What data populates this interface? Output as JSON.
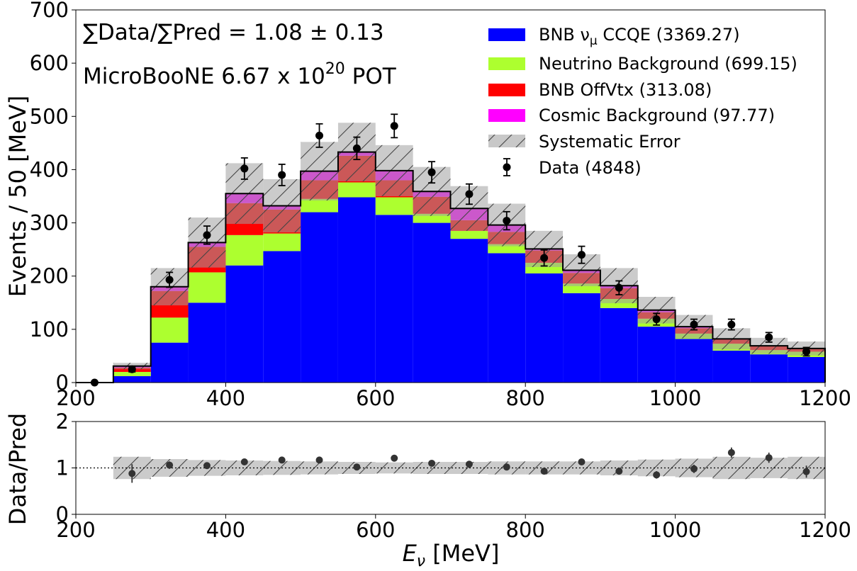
{
  "chart_data": [
    {
      "type": "bar",
      "subtype": "stacked-histogram-with-data-points",
      "bin_edges": [
        200,
        250,
        300,
        350,
        400,
        450,
        500,
        550,
        600,
        650,
        700,
        750,
        800,
        850,
        900,
        950,
        1000,
        1050,
        1100,
        1150,
        1200
      ],
      "series": [
        {
          "name": "BNB νμ CCQE",
          "legend_main": "BNB ν",
          "legend_sub": "μ",
          "legend_rest": " CCQE",
          "yield": "(3369.27)",
          "color": "#0000ff",
          "values": [
            0,
            12,
            75,
            150,
            220,
            247,
            320,
            348,
            315,
            300,
            270,
            243,
            205,
            168,
            140,
            105,
            82,
            60,
            53,
            48
          ]
        },
        {
          "name": "Neutrino Background",
          "legend_main": "Neutrino Background",
          "yield": "(699.15)",
          "color": "#adff2f",
          "values": [
            0,
            8,
            47,
            57,
            57,
            33,
            25,
            28,
            33,
            17,
            15,
            17,
            20,
            18,
            17,
            15,
            10,
            13,
            8,
            10
          ]
        },
        {
          "name": "BNB OffVtx",
          "legend_main": "BNB OffVtx",
          "yield": "(313.08)",
          "color": "#ff0000",
          "values": [
            0,
            8,
            50,
            48,
            60,
            45,
            35,
            50,
            32,
            32,
            20,
            23,
            23,
            20,
            20,
            12,
            10,
            8,
            7,
            5
          ]
        },
        {
          "name": "Cosmic Background",
          "legend_main": "Cosmic Background",
          "yield": "(97.77)",
          "color": "#ff00ff",
          "values": [
            0,
            3,
            8,
            8,
            18,
            7,
            17,
            7,
            18,
            10,
            22,
            13,
            3,
            5,
            5,
            4,
            3,
            1,
            1,
            1
          ]
        }
      ],
      "systematic_error": {
        "label": "Systematic Error",
        "values": [
          0,
          6,
          35,
          47,
          57,
          50,
          55,
          55,
          48,
          46,
          42,
          40,
          34,
          30,
          33,
          25,
          22,
          20,
          15,
          13
        ]
      },
      "data_points": {
        "label": "Data",
        "yield": "(4848)",
        "x": [
          225,
          275,
          325,
          375,
          425,
          475,
          525,
          575,
          625,
          675,
          725,
          775,
          825,
          875,
          925,
          975,
          1025,
          1075,
          1125,
          1175
        ],
        "y": [
          0,
          25,
          193,
          277,
          402,
          390,
          464,
          440,
          482,
          395,
          354,
          304,
          234,
          240,
          178,
          119,
          109,
          109,
          85,
          58
        ],
        "err": [
          0,
          5,
          14,
          17,
          20,
          20,
          22,
          21,
          22,
          20,
          19,
          17,
          15,
          16,
          13,
          11,
          10,
          10,
          9,
          8
        ]
      },
      "annotations": {
        "ratio_text": "∑Data/∑Pred = 1.08 ± 0.13",
        "pot_prefix": "MicroBooNE 6.67 x 10",
        "pot_exp": "20",
        "pot_suffix": " POT"
      },
      "xlabel": "",
      "ylabel": "Events  / 50 [MeV]",
      "xlim": [
        200,
        1200
      ],
      "ylim": [
        0,
        700
      ],
      "xticks": [
        200,
        400,
        600,
        800,
        1000,
        1200
      ],
      "yticks": [
        0,
        100,
        200,
        300,
        400,
        500,
        600,
        700
      ],
      "legend_position": "top-right"
    },
    {
      "type": "scatter",
      "subtype": "ratio-panel",
      "x": [
        275,
        325,
        375,
        425,
        475,
        525,
        575,
        625,
        675,
        725,
        775,
        825,
        875,
        925,
        975,
        1025,
        1075,
        1125,
        1175
      ],
      "ratio": [
        0.88,
        1.06,
        1.05,
        1.13,
        1.17,
        1.17,
        1.02,
        1.21,
        1.1,
        1.08,
        1.02,
        0.93,
        1.13,
        0.93,
        0.85,
        0.98,
        1.33,
        1.22,
        0.92
      ],
      "ratio_err": [
        0.2,
        0.08,
        0.06,
        0.05,
        0.05,
        0.05,
        0.05,
        0.05,
        0.05,
        0.05,
        0.06,
        0.06,
        0.07,
        0.07,
        0.08,
        0.09,
        0.11,
        0.11,
        0.13
      ],
      "band_halfwidth": [
        0.24,
        0.19,
        0.17,
        0.16,
        0.15,
        0.14,
        0.13,
        0.12,
        0.13,
        0.13,
        0.14,
        0.14,
        0.14,
        0.16,
        0.18,
        0.2,
        0.24,
        0.22,
        0.24
      ],
      "reference_line": 1,
      "xlabel_main": "E",
      "xlabel_sub": "ν",
      "xlabel_rest": " [MeV]",
      "ylabel": "Data/Pred",
      "xlim": [
        200,
        1200
      ],
      "ylim": [
        0,
        2
      ],
      "xticks": [
        200,
        400,
        600,
        800,
        1000,
        1200
      ],
      "yticks": [
        0,
        1,
        2
      ]
    }
  ]
}
